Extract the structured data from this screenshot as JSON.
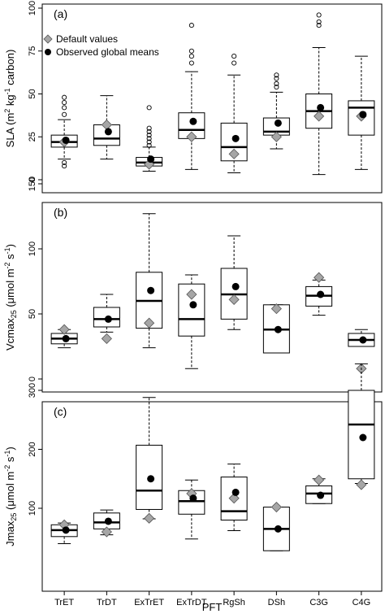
{
  "xlabel": "PFT",
  "categories": [
    "TrET",
    "TrDT",
    "ExTrET",
    "ExTrDT",
    "RgSh",
    "DSh",
    "C3G",
    "C4G"
  ],
  "legend": {
    "default_label": "Default values",
    "observed_label": "Observed global means",
    "placement": "top-left"
  },
  "colors": {
    "default_marker": "#a6a6a6",
    "observed_marker": "#000000",
    "box_line": "#000000"
  },
  "chart_data": [
    {
      "type": "box",
      "panel_label": "(a)",
      "ylabel_main": "SLA (m",
      "ylabel_sup1": "2",
      "ylabel_mid": " kg",
      "ylabel_sup2": "-1",
      "ylabel_end": " carbon)",
      "ylim": [
        0,
        100
      ],
      "yticks": [
        0,
        25,
        50,
        75,
        100
      ],
      "boxes": [
        {
          "cat": "TrET",
          "whisk_lo": 12,
          "q1": 19,
          "med": 22,
          "q3": 26,
          "whisk_hi": 35,
          "outliers": [
            8,
            10,
            38,
            42,
            45,
            48
          ],
          "observed": 23,
          "default": 22
        },
        {
          "cat": "TrDT",
          "whisk_lo": 12,
          "q1": 20,
          "med": 24,
          "q3": 32,
          "whisk_hi": 49,
          "outliers": [],
          "observed": 28,
          "default": 32
        },
        {
          "cat": "ExTrET",
          "whisk_lo": 5,
          "q1": 8,
          "med": 10,
          "q3": 13,
          "whisk_hi": 19,
          "outliers": [
            20,
            22,
            24,
            26,
            28,
            30,
            42
          ],
          "observed": 12,
          "default": 9
        },
        {
          "cat": "ExTrDT",
          "whisk_lo": 6,
          "q1": 24,
          "med": 29,
          "q3": 39,
          "whisk_hi": 63,
          "outliers": [
            68,
            72,
            75,
            90
          ],
          "observed": 34,
          "default": 25
        },
        {
          "cat": "RgSh",
          "whisk_lo": 4,
          "q1": 11,
          "med": 19,
          "q3": 33,
          "whisk_hi": 61,
          "outliers": [
            68,
            72
          ],
          "observed": 24,
          "default": 15
        },
        {
          "cat": "DSh",
          "whisk_lo": 18,
          "q1": 26,
          "med": 28,
          "q3": 36,
          "whisk_hi": 51,
          "outliers": [
            54,
            56,
            59,
            61
          ],
          "observed": 33,
          "default": 25
        },
        {
          "cat": "C3G",
          "whisk_lo": 3,
          "q1": 30,
          "med": 40,
          "q3": 50,
          "whisk_hi": 77,
          "outliers": [
            90,
            92,
            96
          ],
          "observed": 42,
          "default": 37
        },
        {
          "cat": "C4G",
          "whisk_lo": 6,
          "q1": 26,
          "med": 42,
          "q3": 46,
          "whisk_hi": 72,
          "outliers": [],
          "observed": 38,
          "default": 37
        }
      ]
    },
    {
      "type": "box",
      "panel_label": "(b)",
      "ylabel_main": "Vcmax",
      "ylabel_sub": "25",
      "ylabel_mid": " (μmol m",
      "ylabel_sup1": "-2",
      "ylabel_mid2": " s",
      "ylabel_sup2": "-1",
      "ylabel_end": ")",
      "ylim": [
        0,
        150
      ],
      "yticks": [
        0,
        50,
        100,
        150
      ],
      "boxes": [
        {
          "cat": "TrET",
          "whisk_lo": 24,
          "q1": 27,
          "med": 31,
          "q3": 35,
          "whisk_hi": 38,
          "outliers": [],
          "observed": 31,
          "default": 38
        },
        {
          "cat": "TrDT",
          "whisk_lo": 36,
          "q1": 40,
          "med": 46,
          "q3": 55,
          "whisk_hi": 65,
          "outliers": [],
          "observed": 46,
          "default": 31
        },
        {
          "cat": "ExTrET",
          "whisk_lo": 24,
          "q1": 39,
          "med": 60,
          "q3": 82,
          "whisk_hi": 127,
          "outliers": [],
          "observed": 68,
          "default": 43
        },
        {
          "cat": "ExTrDT",
          "whisk_lo": 8,
          "q1": 33,
          "med": 46,
          "q3": 73,
          "whisk_hi": 80,
          "outliers": [],
          "observed": 57,
          "default": 65
        },
        {
          "cat": "RgSh",
          "whisk_lo": 38,
          "q1": 46,
          "med": 65,
          "q3": 85,
          "whisk_hi": 110,
          "outliers": [],
          "observed": 71,
          "default": 61
        },
        {
          "cat": "DSh",
          "whisk_lo": 20,
          "q1": 20,
          "med": 38,
          "q3": 57,
          "whisk_hi": 57,
          "outliers": [],
          "observed": 38,
          "default": 54
        },
        {
          "cat": "C3G",
          "whisk_lo": 49,
          "q1": 56,
          "med": 64,
          "q3": 71,
          "whisk_hi": 76,
          "outliers": [],
          "observed": 65,
          "default": 78
        },
        {
          "cat": "C4G",
          "whisk_lo": 25,
          "q1": 25,
          "med": 30,
          "q3": 35,
          "whisk_hi": 38,
          "outliers": [],
          "observed": 30,
          "default": 8
        }
      ]
    },
    {
      "type": "box",
      "panel_label": "(c)",
      "ylabel_main": "Jmax",
      "ylabel_sub": "25",
      "ylabel_mid": " (μmol m",
      "ylabel_sup1": "-2",
      "ylabel_mid2": " s",
      "ylabel_sup2": "-1",
      "ylabel_end": ")",
      "ylim": [
        0,
        350
      ],
      "yticks": [
        100,
        200,
        300
      ],
      "boxes": [
        {
          "cat": "TrET",
          "whisk_lo": 40,
          "q1": 52,
          "med": 63,
          "q3": 72,
          "whisk_hi": 75,
          "outliers": [],
          "observed": 63,
          "default": 72
        },
        {
          "cat": "TrDT",
          "whisk_lo": 55,
          "q1": 65,
          "med": 76,
          "q3": 92,
          "whisk_hi": 97,
          "outliers": [],
          "observed": 78,
          "default": 60
        },
        {
          "cat": "ExTrET",
          "whisk_lo": 82,
          "q1": 98,
          "med": 130,
          "q3": 207,
          "whisk_hi": 288,
          "outliers": [],
          "observed": 150,
          "default": 83
        },
        {
          "cat": "ExTrDT",
          "whisk_lo": 48,
          "q1": 90,
          "med": 112,
          "q3": 130,
          "whisk_hi": 148,
          "outliers": [],
          "observed": 117,
          "default": 125
        },
        {
          "cat": "RgSh",
          "whisk_lo": 62,
          "q1": 80,
          "med": 95,
          "q3": 153,
          "whisk_hi": 175,
          "outliers": [],
          "observed": 127,
          "default": 117
        },
        {
          "cat": "DSh",
          "whisk_lo": 28,
          "q1": 28,
          "med": 65,
          "q3": 102,
          "whisk_hi": 102,
          "outliers": [],
          "observed": 65,
          "default": 102
        },
        {
          "cat": "C3G",
          "whisk_lo": 108,
          "q1": 108,
          "med": 125,
          "q3": 138,
          "whisk_hi": 150,
          "outliers": [],
          "observed": 122,
          "default": 148
        },
        {
          "cat": "C4G",
          "whisk_lo": 142,
          "q1": 150,
          "med": 242,
          "q3": 300,
          "whisk_hi": 345,
          "outliers": [],
          "observed": 220,
          "default": 140
        }
      ]
    }
  ]
}
